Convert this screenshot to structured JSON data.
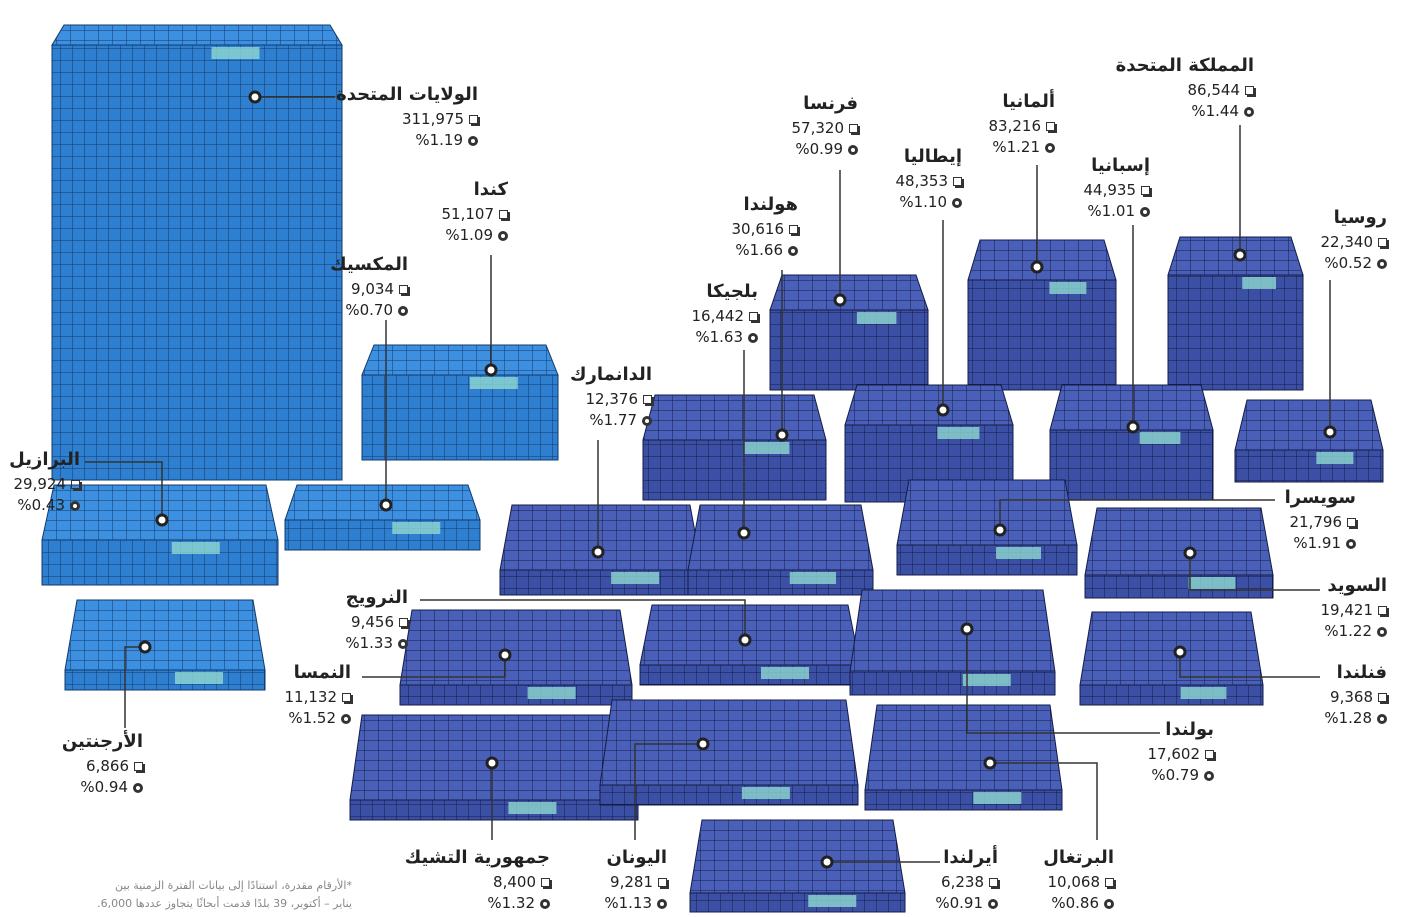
{
  "countries": [
    {
      "name": "الولايات المتحدة",
      "count": "311,975",
      "percent": "%1.19"
    },
    {
      "name": "كندا",
      "count": "51,107",
      "percent": "%1.09"
    },
    {
      "name": "المكسيك",
      "count": "9,034",
      "percent": "%0.70"
    },
    {
      "name": "البرازيل",
      "count": "29,924",
      "percent": "%0.43"
    },
    {
      "name": "الأرجنتين",
      "count": "6,866",
      "percent": "%0.94"
    },
    {
      "name": "الدانمارك",
      "count": "12,376",
      "percent": "%1.77"
    },
    {
      "name": "بلجيكا",
      "count": "16,442",
      "percent": "%1.63"
    },
    {
      "name": "هولندا",
      "count": "30,616",
      "percent": "%1.66"
    },
    {
      "name": "فرنسا",
      "count": "57,320",
      "percent": "%0.99"
    },
    {
      "name": "إيطاليا",
      "count": "48,353",
      "percent": "%1.10"
    },
    {
      "name": "ألمانيا",
      "count": "83,216",
      "percent": "%1.21"
    },
    {
      "name": "إسبانيا",
      "count": "44,935",
      "percent": "%1.01"
    },
    {
      "name": "المملكة المتحدة",
      "count": "86,544",
      "percent": "%1.44"
    },
    {
      "name": "روسيا",
      "count": "22,340",
      "percent": "%0.52"
    },
    {
      "name": "سويسرا",
      "count": "21,796",
      "percent": "%1.91"
    },
    {
      "name": "السويد",
      "count": "19,421",
      "percent": "%1.22"
    },
    {
      "name": "فنلندا",
      "count": "9,368",
      "percent": "%1.28"
    },
    {
      "name": "بولندا",
      "count": "17,602",
      "percent": "%0.79"
    },
    {
      "name": "البرتغال",
      "count": "10,068",
      "percent": "%0.86"
    },
    {
      "name": "أيرلندا",
      "count": "6,238",
      "percent": "%0.91"
    },
    {
      "name": "اليونان",
      "count": "9,281",
      "percent": "%1.13"
    },
    {
      "name": "جمهورية التشيك",
      "count": "8,400",
      "percent": "%1.32"
    },
    {
      "name": "النمسا",
      "count": "11,132",
      "percent": "%1.52"
    },
    {
      "name": "النرويج",
      "count": "9,456",
      "percent": "%1.33"
    }
  ],
  "footnote": [
    "*الأرقام مقدرة، استنادًا إلى بيانات الفترة الزمنية بين",
    "يناير – أكتوبر، 39 بلدًا قدمت أبحاثًا يتجاوز عددها 6,000."
  ]
}
